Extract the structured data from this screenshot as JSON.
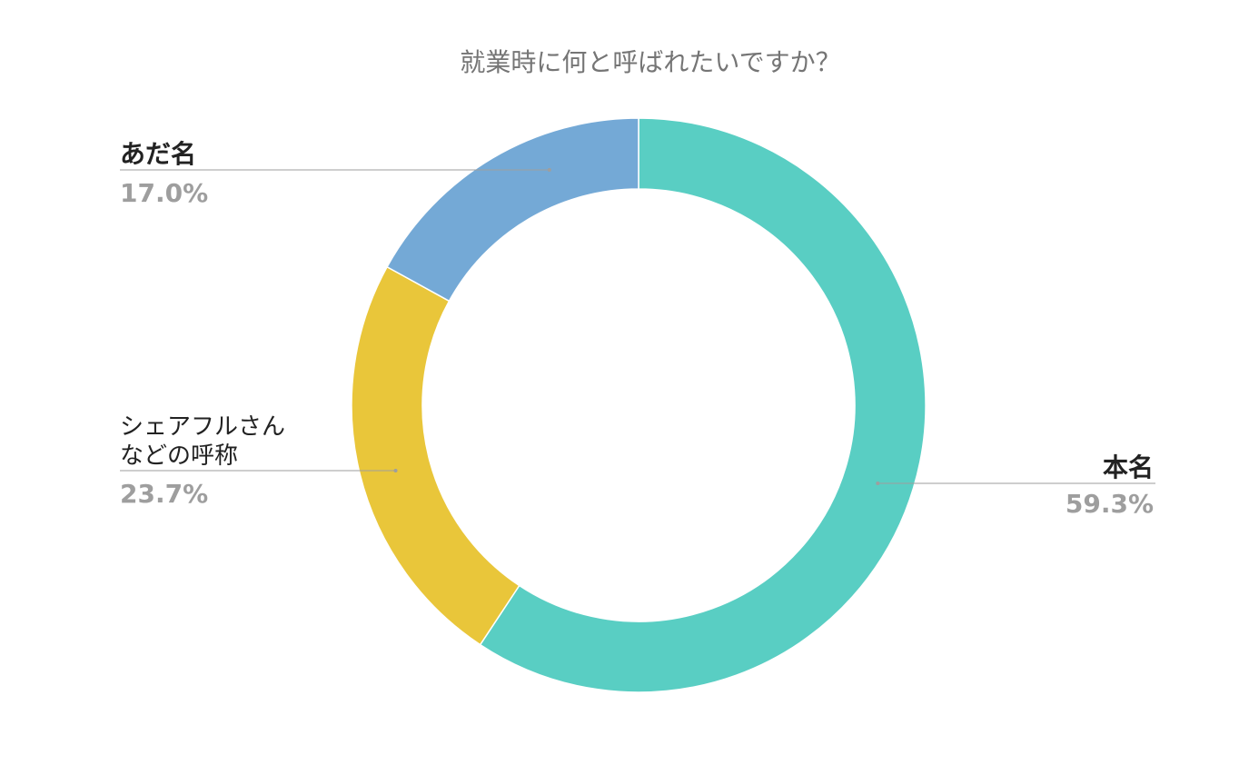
{
  "chart_data": {
    "type": "pie",
    "variant": "donut",
    "title": "就業時に何と呼ばれたいですか？",
    "slices": [
      {
        "label": "本名",
        "label_lines": [
          "本名"
        ],
        "value": 59.3,
        "display": "59.3%",
        "color": "#59cec3"
      },
      {
        "label": "シェアフルさんなどの呼称",
        "label_lines": [
          "シェアフルさん",
          "などの呼称"
        ],
        "value": 23.7,
        "display": "23.7%",
        "color": "#e9c63a"
      },
      {
        "label": "あだ名",
        "label_lines": [
          "あだ名"
        ],
        "value": 17.0,
        "display": "17.0%",
        "color": "#74a9d6"
      }
    ],
    "start_angle": "12 o'clock",
    "direction": "clockwise",
    "legend": "none (inline labels)"
  }
}
